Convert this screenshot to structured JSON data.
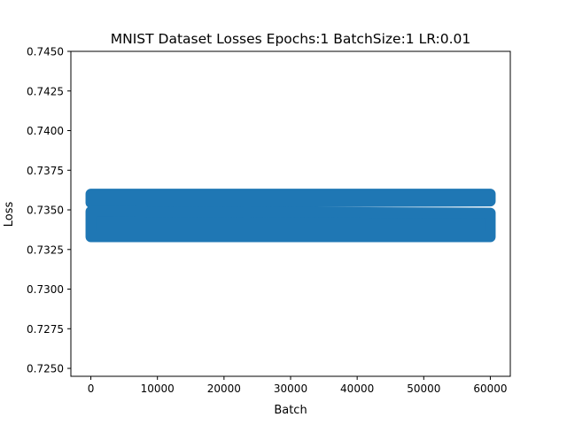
{
  "chart_data": {
    "type": "scatter",
    "title": "MNIST Dataset Losses Epochs:1 BatchSize:1 LR:0.01",
    "xlabel": "Batch",
    "ylabel": "Loss",
    "xlim": [
      -3000,
      63000
    ],
    "ylim": [
      0.7245,
      0.745
    ],
    "x_ticks": [
      0,
      10000,
      20000,
      30000,
      40000,
      50000,
      60000
    ],
    "x_tick_labels": [
      "0",
      "10000",
      "20000",
      "30000",
      "40000",
      "50000",
      "60000"
    ],
    "y_ticks": [
      0.725,
      0.7275,
      0.73,
      0.7325,
      0.735,
      0.7375,
      0.74,
      0.7425,
      0.745
    ],
    "y_tick_labels": [
      "0.7250",
      "0.7275",
      "0.7300",
      "0.7325",
      "0.7350",
      "0.7375",
      "0.7400",
      "0.7425",
      "0.7450"
    ],
    "grid": false,
    "series": [
      {
        "color": "#1f77b4",
        "bands": [
          {
            "x_start": 0,
            "x_end": 60000,
            "y_low_start": 0.73545,
            "y_high_start": 0.736,
            "y_low_end": 0.73555,
            "y_high_end": 0.736
          },
          {
            "x_start": 0,
            "x_end": 60000,
            "y_low_start": 0.7333,
            "y_high_start": 0.7349,
            "y_low_end": 0.7333,
            "y_high_end": 0.7348
          }
        ],
        "x_range": [
          0,
          60000
        ],
        "y_range": [
          0.7332,
          0.7361
        ]
      }
    ]
  }
}
